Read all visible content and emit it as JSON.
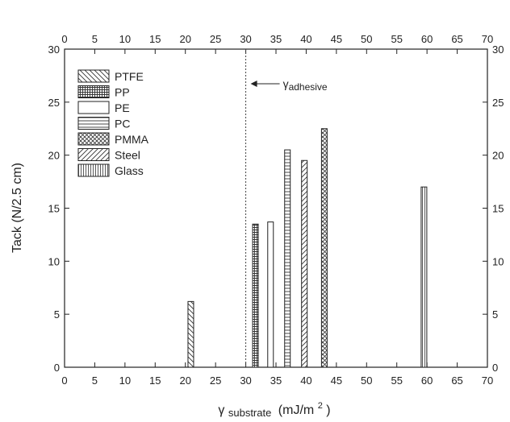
{
  "chart_data": {
    "type": "bar",
    "xlabel": {
      "main": "γ",
      "sub": "substrate",
      "unit": "(mJ/m",
      "sup": "2",
      "close": ")"
    },
    "ylabel": "Tack (N/2.5 cm)",
    "xlim": [
      0,
      70
    ],
    "ylim": [
      0,
      30
    ],
    "x_ticks": [
      0,
      5,
      10,
      15,
      20,
      25,
      30,
      35,
      40,
      45,
      50,
      55,
      60,
      65,
      70
    ],
    "y_ticks": [
      0,
      5,
      10,
      15,
      20,
      25,
      30
    ],
    "grid": false,
    "legend_position": "top-left",
    "series": [
      {
        "name": "PTFE",
        "x": 20.9,
        "value": 6.2,
        "pattern": "diag-back"
      },
      {
        "name": "PP",
        "x": 31.6,
        "value": 13.5,
        "pattern": "grid"
      },
      {
        "name": "PE",
        "x": 34.1,
        "value": 13.7,
        "pattern": "none"
      },
      {
        "name": "PC",
        "x": 36.9,
        "value": 20.5,
        "pattern": "horizontal"
      },
      {
        "name": "PMMA",
        "x": 43.0,
        "value": 22.5,
        "pattern": "crosshatch"
      },
      {
        "name": "Steel",
        "x": 39.7,
        "value": 19.5,
        "pattern": "diag-fwd"
      },
      {
        "name": "Glass",
        "x": 59.5,
        "value": 17.0,
        "pattern": "vertical"
      }
    ],
    "reference_line": {
      "x": 30,
      "label_main": "γ",
      "label_sub": "adhesive"
    }
  }
}
